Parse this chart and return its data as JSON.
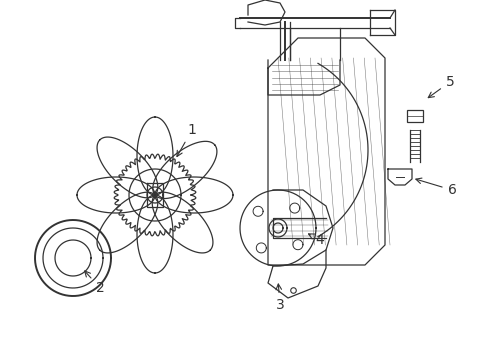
{
  "background_color": "#ffffff",
  "line_color": "#333333",
  "label_fontsize": 10,
  "fig_width": 4.89,
  "fig_height": 3.6,
  "dpi": 100
}
